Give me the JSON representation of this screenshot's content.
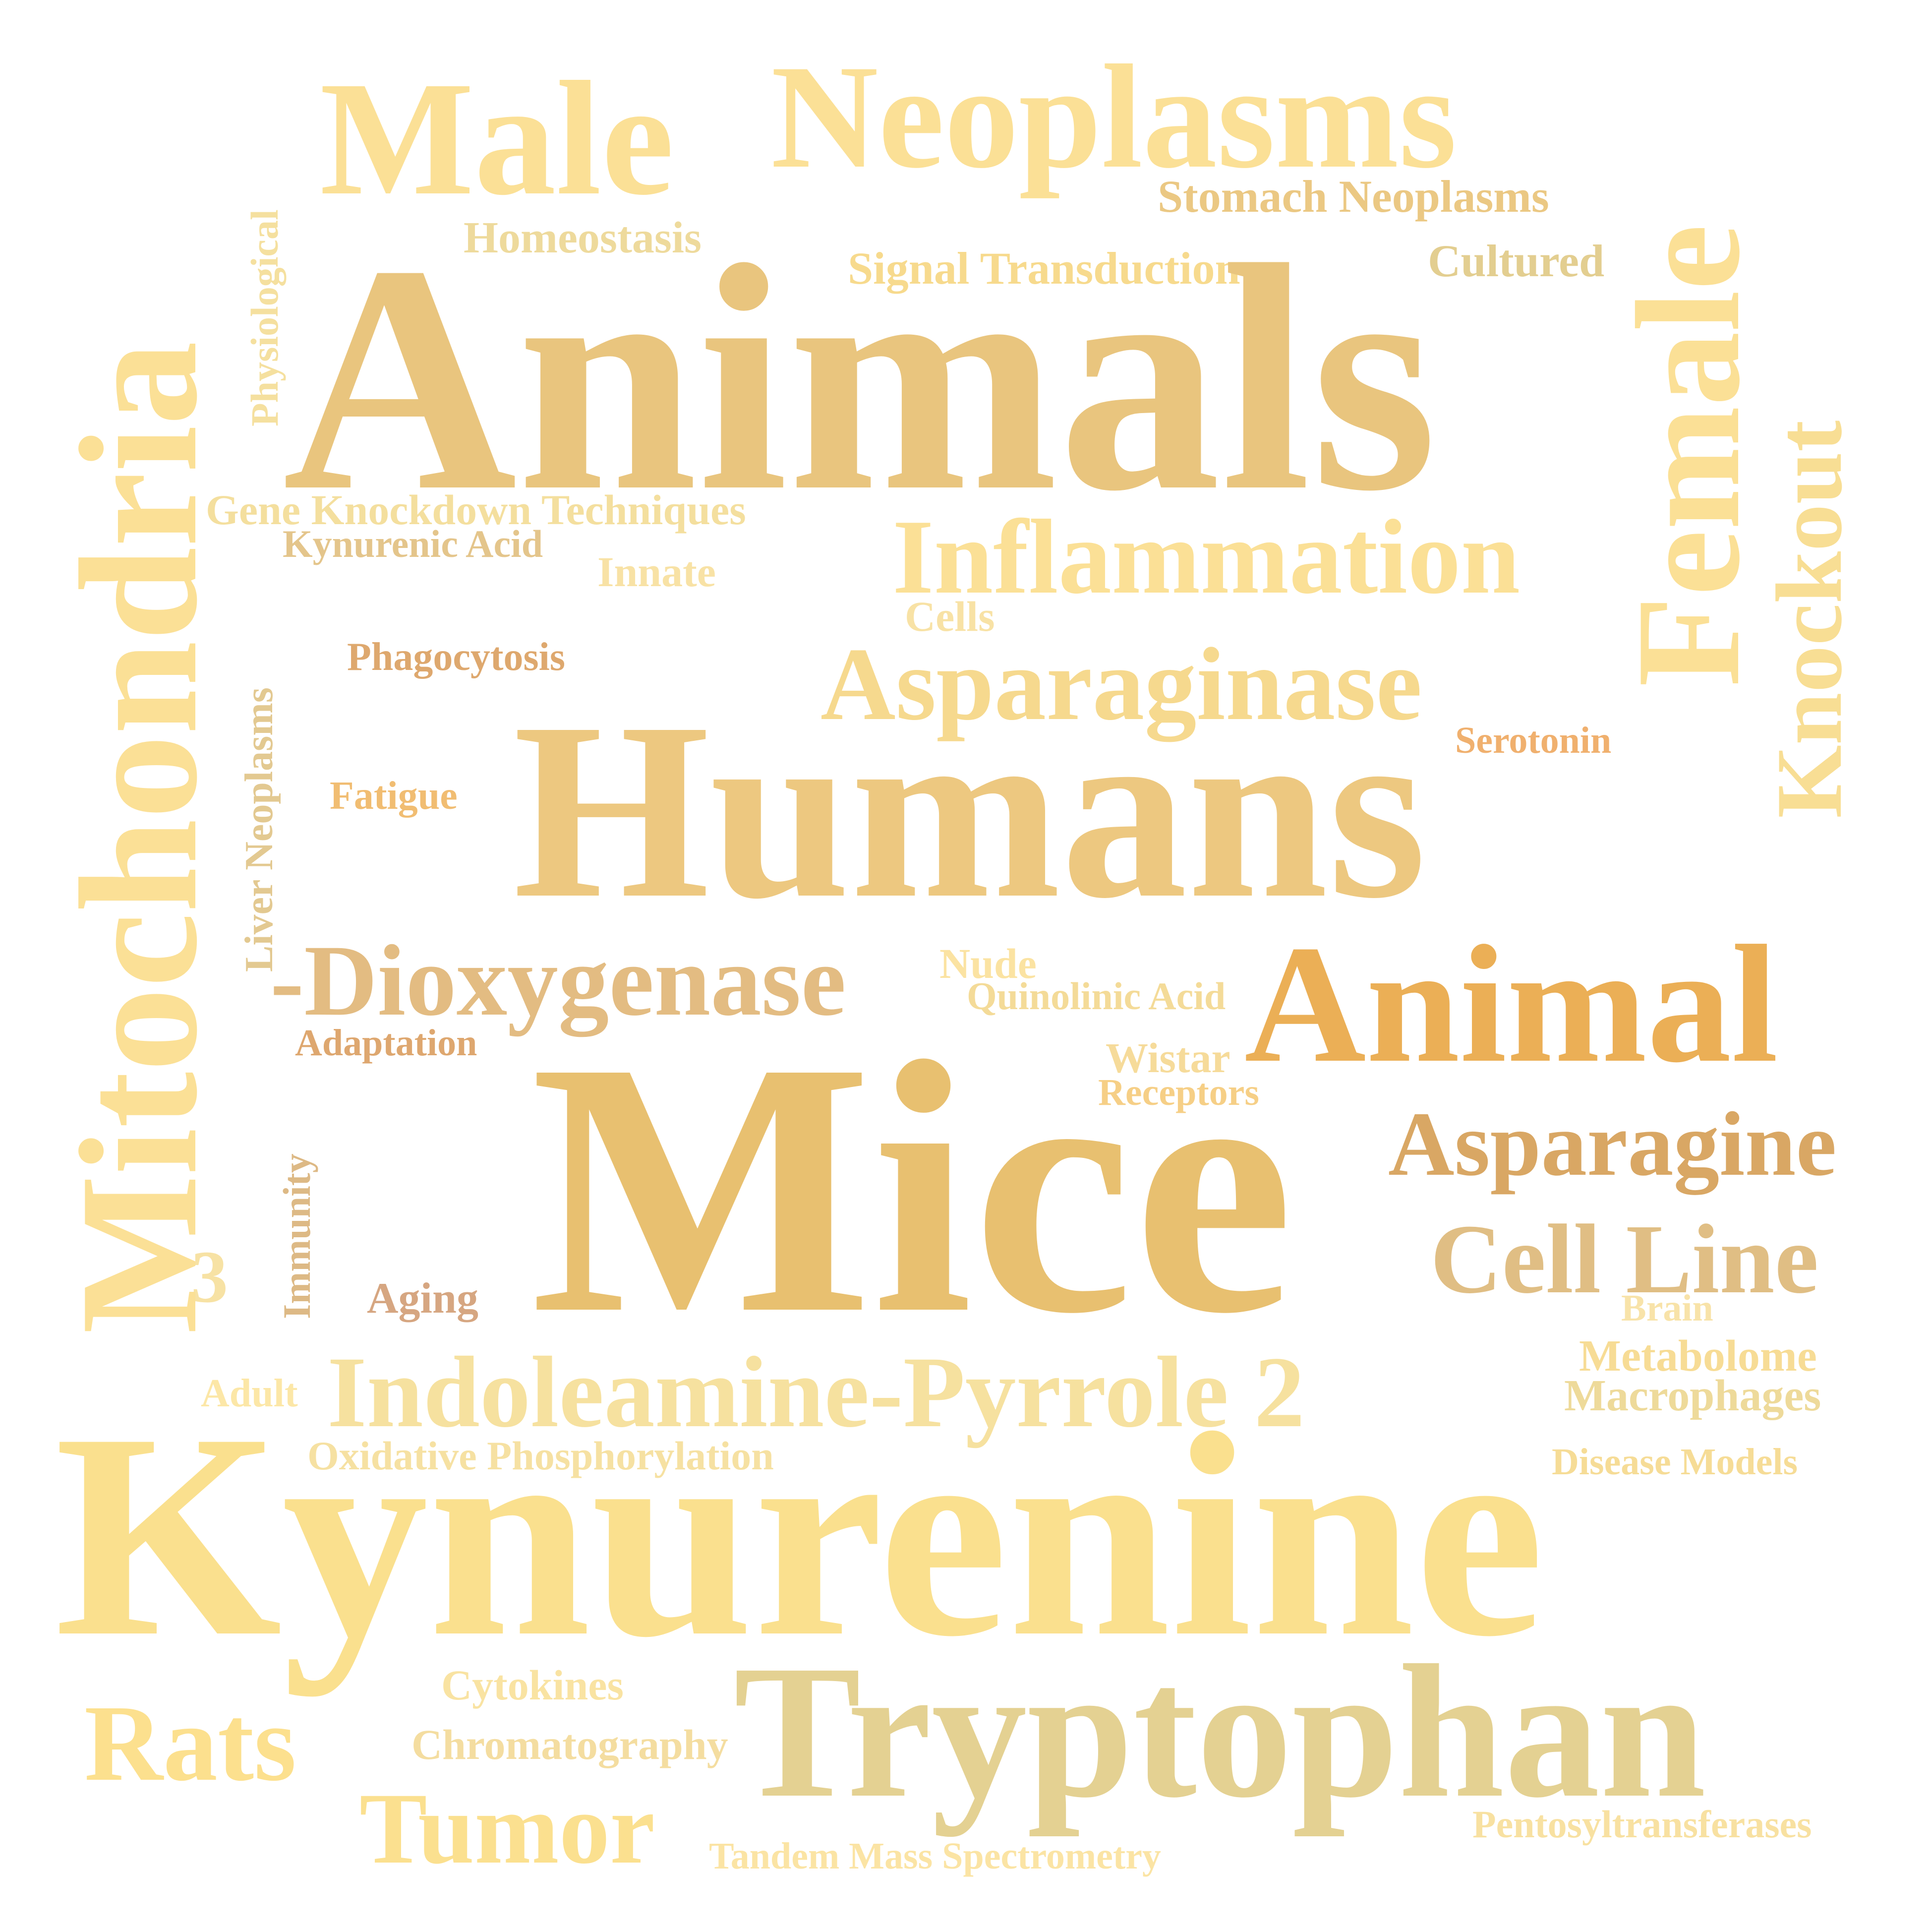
{
  "words": {
    "male": {
      "text": "Male",
      "color": "#FBE096"
    },
    "neoplasms": {
      "text": "Neoplasms",
      "color": "#FBE096"
    },
    "stomach": {
      "text": "Stomach Neoplasms",
      "color": "#EBC883"
    },
    "homeostasis": {
      "text": "Homeostasis",
      "color": "#EEDA9C"
    },
    "signal": {
      "text": "Signal Transduction",
      "color": "#F7DA8D"
    },
    "cultured": {
      "text": "Cultured",
      "color": "#E3CE90"
    },
    "animals": {
      "text": "Animals",
      "color": "#E9C57E"
    },
    "geneknock": {
      "text": "Gene Knockdown Techniques",
      "color": "#F4DF9E"
    },
    "kynacid": {
      "text": "Kynurenic Acid",
      "color": "#E4C58B"
    },
    "innate": {
      "text": "Innate",
      "color": "#F8E2A5"
    },
    "inflammation": {
      "text": "Inflammation",
      "color": "#FBE096"
    },
    "cells": {
      "text": "Cells",
      "color": "#F8E2A5"
    },
    "phago": {
      "text": "Phagocytosis",
      "color": "#DEA86E"
    },
    "asparaginase": {
      "text": "Asparaginase",
      "color": "#F6D98E"
    },
    "serotonin": {
      "text": "Serotonin",
      "color": "#F0B06E"
    },
    "fatigue": {
      "text": "Fatigue",
      "color": "#F1BD72"
    },
    "humans": {
      "text": "Humans",
      "color": "#EDC880"
    },
    "dioxygenase": {
      "text": "-Dioxygenase",
      "color": "#E3BC82"
    },
    "nude": {
      "text": "Nude",
      "color": "#FBE3A2"
    },
    "quinolinic": {
      "text": "Quinolinic Acid",
      "color": "#F4DB98"
    },
    "animal": {
      "text": "Animal",
      "color": "#EBAF56"
    },
    "adaptation": {
      "text": "Adaptation",
      "color": "#DEA76F"
    },
    "wistar": {
      "text": "Wistar",
      "color": "#F6DB9A"
    },
    "receptors": {
      "text": "Receptors",
      "color": "#F6CF86"
    },
    "mice": {
      "text": "Mice",
      "color": "#E8C070"
    },
    "asparagine": {
      "text": "Asparagine",
      "color": "#D9A764"
    },
    "three": {
      "text": "3",
      "color": "#F7E2A4"
    },
    "cellline": {
      "text": "Cell Line",
      "color": "#E0BE84"
    },
    "aging": {
      "text": "Aging",
      "color": "#D6A681"
    },
    "brain": {
      "text": "Brain",
      "color": "#F8E3A9"
    },
    "metabolome": {
      "text": "Metabolome",
      "color": "#F7DC95"
    },
    "adult": {
      "text": "Adult",
      "color": "#FCE7A7"
    },
    "indoleamine": {
      "text": "Indoleamine-Pyrrole 2",
      "color": "#F6E19F"
    },
    "macrophages": {
      "text": "Macrophages",
      "color": "#EEDA9A"
    },
    "oxphos": {
      "text": "Oxidative Phosphorylation",
      "color": "#F6E1A2"
    },
    "diseasemodels": {
      "text": "Disease Models",
      "color": "#F6DC96"
    },
    "kynurenine": {
      "text": "Kynurenine",
      "color": "#FAE08E"
    },
    "cytokines": {
      "text": "Cytokines",
      "color": "#F9E3A2"
    },
    "chromato": {
      "text": "Chromatography",
      "color": "#F4DDA0"
    },
    "rats": {
      "text": "Rats",
      "color": "#FCE08E"
    },
    "tryptophan": {
      "text": "Tryptophan",
      "color": "#E4D192"
    },
    "tumor": {
      "text": "Tumor",
      "color": "#FBE08F"
    },
    "pentosyl": {
      "text": "Pentosyltransferases",
      "color": "#F8E1A1"
    },
    "tandem": {
      "text": "Tandem Mass Spectrometry",
      "color": "#FBE4A4"
    },
    "mitochondria": {
      "text": "Mitochondria",
      "color": "#FBE096"
    },
    "physiological": {
      "text": "Physiological",
      "color": "#F5E09F"
    },
    "liverneo": {
      "text": "Liver Neoplasms",
      "color": "#E3C991"
    },
    "immunity": {
      "text": "Immunity",
      "color": "#DDB985"
    },
    "female": {
      "text": "Female",
      "color": "#FBE096"
    },
    "knockout": {
      "text": "Knockout",
      "color": "#F8DE94"
    }
  }
}
